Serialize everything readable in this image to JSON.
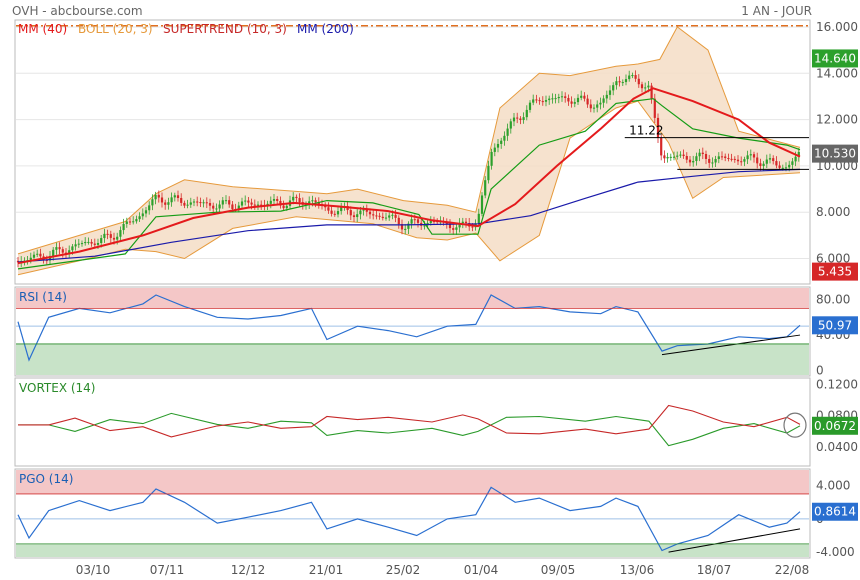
{
  "header": {
    "left": "OVH - abcbourse.com",
    "right": "1 AN - JOUR"
  },
  "colors": {
    "candle_up": "#2ca02c",
    "candle_down": "#d62728",
    "mm40": "#e41a1c",
    "boll": "#e69a3c",
    "boll_fill": "#f5ddc6",
    "supertrend": "#159c15",
    "mm200": "#1a1aaa",
    "rsi": "#2a6fd0",
    "vortex_plus": "#2a9a2a",
    "vortex_minus": "#c62828",
    "pgo": "#2a6fd0",
    "zone_high": "#f4c7c7",
    "zone_low": "#c8e3c8",
    "hline": "#e07020"
  },
  "chart_data": [
    {
      "type": "candlestick",
      "title": "OVH",
      "legend": [
        "MM (40)",
        "BOLL (20, 3)",
        "SUPERTREND (10, 3)",
        "MM (200)"
      ],
      "y_ticks": [
        "16.000",
        "14.000",
        "12.000",
        "10.000",
        "8.000",
        "6.000"
      ],
      "ylim": [
        4.9,
        16.3
      ],
      "grid": true,
      "x_ticks": [
        "03/10",
        "07/11",
        "12/12",
        "21/01",
        "25/02",
        "01/04",
        "09/05",
        "13/06",
        "18/07",
        "22/08"
      ],
      "badges": [
        {
          "value": "14.640",
          "color": "#2ca02c"
        },
        {
          "value": "10.530",
          "color": "#666666"
        },
        {
          "value": "5.435",
          "color": "#d62728"
        }
      ],
      "annotation": {
        "text": "11.22",
        "value": 11.22
      },
      "resistance_line": 16.05,
      "prices": [
        [
          "2023-09-05",
          5.9
        ],
        [
          "2023-09-19",
          6.15
        ],
        [
          "2023-10-03",
          6.6
        ],
        [
          "2023-10-17",
          6.9
        ],
        [
          "2023-10-31",
          7.9
        ],
        [
          "2023-11-07",
          8.6
        ],
        [
          "2023-11-20",
          8.45
        ],
        [
          "2023-12-05",
          8.3
        ],
        [
          "2023-12-18",
          8.35
        ],
        [
          "2024-01-03",
          8.4
        ],
        [
          "2024-01-17",
          8.5
        ],
        [
          "2024-01-24",
          8.1
        ],
        [
          "2024-02-07",
          8.0
        ],
        [
          "2024-02-21",
          7.8
        ],
        [
          "2024-02-28",
          7.45
        ],
        [
          "2024-03-12",
          7.6
        ],
        [
          "2024-03-26",
          7.35
        ],
        [
          "2024-04-02",
          7.7
        ],
        [
          "2024-04-08",
          10.6
        ],
        [
          "2024-04-19",
          12.0
        ],
        [
          "2024-04-30",
          12.9
        ],
        [
          "2024-05-14",
          12.9
        ],
        [
          "2024-05-28",
          12.6
        ],
        [
          "2024-06-04",
          13.7
        ],
        [
          "2024-06-14",
          13.75
        ],
        [
          "2024-06-19",
          13.3
        ],
        [
          "2024-06-25",
          10.4
        ],
        [
          "2024-07-09",
          10.35
        ],
        [
          "2024-07-23",
          10.3
        ],
        [
          "2024-08-06",
          10.3
        ],
        [
          "2024-08-21",
          9.95
        ],
        [
          "2024-08-27",
          10.53
        ]
      ],
      "mm40": [
        [
          "2023-09-05",
          5.8
        ],
        [
          "2023-10-03",
          6.3
        ],
        [
          "2023-11-01",
          7.0
        ],
        [
          "2023-11-24",
          7.75
        ],
        [
          "2023-12-19",
          8.2
        ],
        [
          "2024-01-09",
          8.4
        ],
        [
          "2024-01-29",
          8.25
        ],
        [
          "2024-02-21",
          8.05
        ],
        [
          "2024-03-12",
          7.65
        ],
        [
          "2024-04-02",
          7.4
        ],
        [
          "2024-04-19",
          8.35
        ],
        [
          "2024-05-08",
          10.0
        ],
        [
          "2024-05-28",
          11.6
        ],
        [
          "2024-06-12",
          12.9
        ],
        [
          "2024-06-21",
          13.35
        ],
        [
          "2024-07-09",
          12.8
        ],
        [
          "2024-07-30",
          12.0
        ],
        [
          "2024-08-13",
          11.0
        ],
        [
          "2024-08-27",
          10.4
        ]
      ],
      "mm200": [
        [
          "2023-09-05",
          5.85
        ],
        [
          "2023-10-10",
          6.1
        ],
        [
          "2023-11-14",
          6.7
        ],
        [
          "2023-12-19",
          7.2
        ],
        [
          "2024-01-24",
          7.45
        ],
        [
          "2024-02-28",
          7.45
        ],
        [
          "2024-04-02",
          7.5
        ],
        [
          "2024-04-26",
          7.85
        ],
        [
          "2024-05-21",
          8.6
        ],
        [
          "2024-06-14",
          9.3
        ],
        [
          "2024-07-09",
          9.55
        ],
        [
          "2024-07-30",
          9.75
        ],
        [
          "2024-08-27",
          9.85
        ]
      ],
      "supertrend": [
        [
          "2023-09-05",
          5.55
        ],
        [
          "2023-10-24",
          6.2
        ],
        [
          "2023-11-07",
          7.8
        ],
        [
          "2023-12-05",
          8.0
        ],
        [
          "2024-01-03",
          8.05
        ],
        [
          "2024-01-24",
          8.5
        ],
        [
          "2024-02-14",
          8.4
        ],
        [
          "2024-03-06",
          7.9
        ],
        [
          "2024-03-12",
          7.05
        ],
        [
          "2024-04-02",
          7.05
        ],
        [
          "2024-04-08",
          9.0
        ],
        [
          "2024-04-30",
          10.9
        ],
        [
          "2024-05-21",
          11.5
        ],
        [
          "2024-06-04",
          12.7
        ],
        [
          "2024-06-21",
          12.9
        ],
        [
          "2024-06-25",
          12.6
        ],
        [
          "2024-07-09",
          11.6
        ],
        [
          "2024-07-30",
          11.2
        ],
        [
          "2024-08-21",
          10.9
        ],
        [
          "2024-08-27",
          10.7
        ]
      ],
      "boll_upper": [
        [
          "2023-09-05",
          6.2
        ],
        [
          "2023-10-03",
          7.0
        ],
        [
          "2023-10-24",
          7.6
        ],
        [
          "2023-11-07",
          8.8
        ],
        [
          "2023-11-20",
          9.4
        ],
        [
          "2023-12-12",
          9.1
        ],
        [
          "2024-01-10",
          8.9
        ],
        [
          "2024-01-24",
          8.8
        ],
        [
          "2024-02-07",
          9.0
        ],
        [
          "2024-02-28",
          8.5
        ],
        [
          "2024-03-19",
          8.3
        ],
        [
          "2024-04-01",
          8.0
        ],
        [
          "2024-04-12",
          12.5
        ],
        [
          "2024-04-30",
          14.0
        ],
        [
          "2024-05-14",
          13.9
        ],
        [
          "2024-06-04",
          14.3
        ],
        [
          "2024-06-14",
          14.4
        ],
        [
          "2024-06-24",
          14.6
        ],
        [
          "2024-07-02",
          16.0
        ],
        [
          "2024-07-16",
          15.0
        ],
        [
          "2024-07-30",
          11.5
        ],
        [
          "2024-08-27",
          10.8
        ]
      ],
      "boll_lower": [
        [
          "2023-09-05",
          5.3
        ],
        [
          "2023-10-03",
          5.9
        ],
        [
          "2023-10-24",
          6.4
        ],
        [
          "2023-11-07",
          6.3
        ],
        [
          "2023-11-20",
          6.0
        ],
        [
          "2023-12-12",
          7.3
        ],
        [
          "2024-01-10",
          7.8
        ],
        [
          "2024-02-14",
          7.5
        ],
        [
          "2024-03-05",
          6.9
        ],
        [
          "2024-03-19",
          6.8
        ],
        [
          "2024-04-01",
          7.1
        ],
        [
          "2024-04-12",
          5.9
        ],
        [
          "2024-04-30",
          7.0
        ],
        [
          "2024-05-14",
          11.2
        ],
        [
          "2024-06-04",
          12.5
        ],
        [
          "2024-06-14",
          12.8
        ],
        [
          "2024-06-28",
          11.0
        ],
        [
          "2024-07-09",
          8.6
        ],
        [
          "2024-07-23",
          9.5
        ],
        [
          "2024-08-27",
          9.7
        ]
      ]
    },
    {
      "type": "line",
      "title": "RSI (14)",
      "y_ticks": [
        "80.00",
        "40.00",
        "0"
      ],
      "ylim": [
        -6,
        94
      ],
      "zones": {
        "high_from": 70,
        "low_to": 30,
        "mid": 50
      },
      "badge": "50.97",
      "values": [
        [
          "2023-09-05",
          55
        ],
        [
          "2023-09-10",
          12
        ],
        [
          "2023-09-19",
          60
        ],
        [
          "2023-10-03",
          70
        ],
        [
          "2023-10-17",
          65
        ],
        [
          "2023-11-01",
          75
        ],
        [
          "2023-11-07",
          85
        ],
        [
          "2023-11-20",
          72
        ],
        [
          "2023-12-05",
          60
        ],
        [
          "2023-12-19",
          58
        ],
        [
          "2024-01-03",
          62
        ],
        [
          "2024-01-17",
          70
        ],
        [
          "2024-01-24",
          35
        ],
        [
          "2024-02-07",
          50
        ],
        [
          "2024-02-21",
          45
        ],
        [
          "2024-03-05",
          38
        ],
        [
          "2024-03-19",
          50
        ],
        [
          "2024-04-01",
          52
        ],
        [
          "2024-04-08",
          85
        ],
        [
          "2024-04-19",
          70
        ],
        [
          "2024-04-30",
          72
        ],
        [
          "2024-05-14",
          66
        ],
        [
          "2024-05-28",
          64
        ],
        [
          "2024-06-04",
          72
        ],
        [
          "2024-06-14",
          66
        ],
        [
          "2024-06-25",
          22
        ],
        [
          "2024-07-02",
          28
        ],
        [
          "2024-07-16",
          30
        ],
        [
          "2024-07-30",
          38
        ],
        [
          "2024-08-13",
          36
        ],
        [
          "2024-08-21",
          38
        ],
        [
          "2024-08-27",
          50.97
        ]
      ],
      "trendline": [
        [
          "2024-06-25",
          18
        ],
        [
          "2024-08-27",
          40
        ]
      ]
    },
    {
      "type": "line",
      "title": "VORTEX (14)",
      "y_ticks": [
        "0.1200",
        "0.0800",
        "0.0400"
      ],
      "ylim": [
        0.016,
        0.128
      ],
      "badge": "0.0672",
      "series_plus": [
        [
          "2023-09-05",
          0.0683
        ],
        [
          "2023-09-19",
          0.0683
        ],
        [
          "2023-10-01",
          0.06
        ],
        [
          "2023-10-17",
          0.075
        ],
        [
          "2023-11-01",
          0.07
        ],
        [
          "2023-11-14",
          0.083
        ],
        [
          "2023-12-05",
          0.069
        ],
        [
          "2023-12-19",
          0.064
        ],
        [
          "2024-01-03",
          0.073
        ],
        [
          "2024-01-17",
          0.071
        ],
        [
          "2024-01-24",
          0.055
        ],
        [
          "2024-02-07",
          0.061
        ],
        [
          "2024-02-21",
          0.058
        ],
        [
          "2024-03-12",
          0.064
        ],
        [
          "2024-03-26",
          0.055
        ],
        [
          "2024-04-02",
          0.06
        ],
        [
          "2024-04-15",
          0.078
        ],
        [
          "2024-04-30",
          0.079
        ],
        [
          "2024-05-21",
          0.073
        ],
        [
          "2024-06-04",
          0.079
        ],
        [
          "2024-06-19",
          0.073
        ],
        [
          "2024-06-28",
          0.042
        ],
        [
          "2024-07-09",
          0.05
        ],
        [
          "2024-07-23",
          0.064
        ],
        [
          "2024-08-06",
          0.07
        ],
        [
          "2024-08-21",
          0.058
        ],
        [
          "2024-08-27",
          0.0672
        ]
      ],
      "series_minus": [
        [
          "2023-09-05",
          0.0683
        ],
        [
          "2023-09-19",
          0.0683
        ],
        [
          "2023-10-01",
          0.077
        ],
        [
          "2023-10-17",
          0.061
        ],
        [
          "2023-11-01",
          0.066
        ],
        [
          "2023-11-14",
          0.053
        ],
        [
          "2023-12-05",
          0.067
        ],
        [
          "2023-12-19",
          0.072
        ],
        [
          "2024-01-03",
          0.064
        ],
        [
          "2024-01-17",
          0.066
        ],
        [
          "2024-01-24",
          0.079
        ],
        [
          "2024-02-07",
          0.075
        ],
        [
          "2024-02-21",
          0.078
        ],
        [
          "2024-03-12",
          0.072
        ],
        [
          "2024-03-26",
          0.081
        ],
        [
          "2024-04-02",
          0.076
        ],
        [
          "2024-04-15",
          0.058
        ],
        [
          "2024-04-30",
          0.057
        ],
        [
          "2024-05-21",
          0.063
        ],
        [
          "2024-06-04",
          0.057
        ],
        [
          "2024-06-19",
          0.063
        ],
        [
          "2024-06-28",
          0.093
        ],
        [
          "2024-07-09",
          0.086
        ],
        [
          "2024-07-23",
          0.072
        ],
        [
          "2024-08-06",
          0.066
        ],
        [
          "2024-08-21",
          0.078
        ],
        [
          "2024-08-27",
          0.069
        ]
      ],
      "highlight": "2024-08-27"
    },
    {
      "type": "line",
      "title": "PGO (14)",
      "y_ticks": [
        "4.000",
        "0",
        "-4.000"
      ],
      "ylim": [
        -4.7,
        6.0
      ],
      "zones": {
        "high_from": 3,
        "low_to": -3,
        "mid": 0
      },
      "badge": "0.8614",
      "values": [
        [
          "2023-09-05",
          0.5
        ],
        [
          "2023-09-10",
          -2.3
        ],
        [
          "2023-09-19",
          1.0
        ],
        [
          "2023-10-03",
          2.2
        ],
        [
          "2023-10-17",
          1.0
        ],
        [
          "2023-11-01",
          2.0
        ],
        [
          "2023-11-07",
          3.6
        ],
        [
          "2023-11-20",
          2.0
        ],
        [
          "2023-12-05",
          -0.5
        ],
        [
          "2023-12-19",
          0.2
        ],
        [
          "2024-01-03",
          1.0
        ],
        [
          "2024-01-17",
          2.0
        ],
        [
          "2024-01-24",
          -1.2
        ],
        [
          "2024-02-07",
          0.0
        ],
        [
          "2024-02-21",
          -1.0
        ],
        [
          "2024-03-05",
          -2.0
        ],
        [
          "2024-03-19",
          0.0
        ],
        [
          "2024-04-01",
          0.5
        ],
        [
          "2024-04-08",
          3.8
        ],
        [
          "2024-04-19",
          2.0
        ],
        [
          "2024-04-30",
          2.5
        ],
        [
          "2024-05-14",
          1.0
        ],
        [
          "2024-05-28",
          1.5
        ],
        [
          "2024-06-04",
          2.5
        ],
        [
          "2024-06-14",
          1.5
        ],
        [
          "2024-06-25",
          -3.8
        ],
        [
          "2024-07-02",
          -3.0
        ],
        [
          "2024-07-16",
          -2.0
        ],
        [
          "2024-07-30",
          0.5
        ],
        [
          "2024-08-13",
          -1.0
        ],
        [
          "2024-08-21",
          -0.5
        ],
        [
          "2024-08-27",
          0.8614
        ]
      ],
      "trendline": [
        [
          "2024-06-28",
          -4.0
        ],
        [
          "2024-08-27",
          -1.2
        ]
      ]
    }
  ]
}
